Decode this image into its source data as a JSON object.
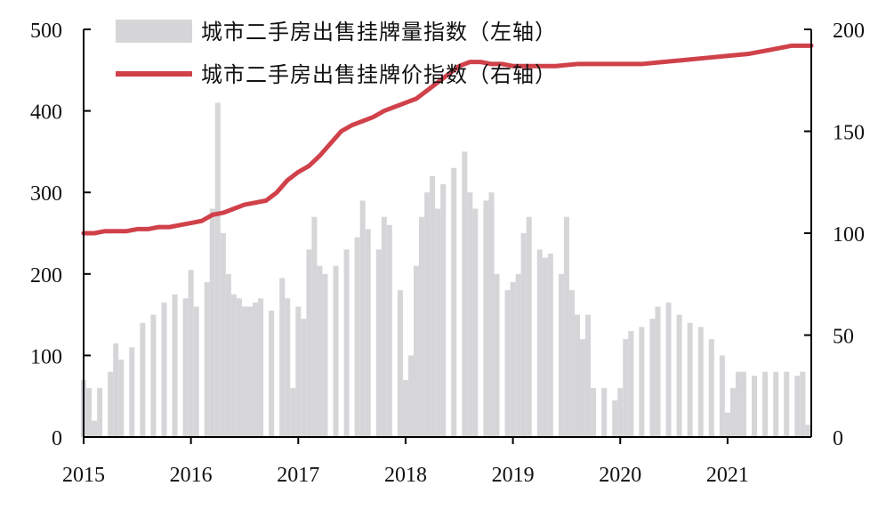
{
  "chart_data": {
    "type": "bar+line",
    "title": "",
    "x_ticks": [
      "2015",
      "2016",
      "2017",
      "2018",
      "2019",
      "2020",
      "2021"
    ],
    "x_range": [
      2015.0,
      2021.78
    ],
    "left_axis": {
      "ylim": [
        0,
        500
      ],
      "ticks": [
        "0",
        "100",
        "200",
        "300",
        "400",
        "500"
      ]
    },
    "right_axis": {
      "ylim": [
        0,
        200
      ],
      "ticks": [
        "0",
        "50",
        "100",
        "150",
        "200"
      ]
    },
    "legend_position": "top-left",
    "bar_color": "#d6d5d8",
    "line_color": "#d0414a",
    "series": [
      {
        "name": "城市二手房出售挂牌量指数（左轴）",
        "type": "bar",
        "axis": "left",
        "x": [
          2015.0,
          2015.05,
          2015.1,
          2015.15,
          2015.25,
          2015.3,
          2015.35,
          2015.45,
          2015.55,
          2015.65,
          2015.75,
          2015.85,
          2015.95,
          2016.0,
          2016.05,
          2016.15,
          2016.2,
          2016.25,
          2016.3,
          2016.35,
          2016.4,
          2016.45,
          2016.5,
          2016.55,
          2016.6,
          2016.65,
          2016.75,
          2016.85,
          2016.9,
          2016.95,
          2017.0,
          2017.05,
          2017.1,
          2017.15,
          2017.2,
          2017.25,
          2017.35,
          2017.45,
          2017.55,
          2017.6,
          2017.65,
          2017.75,
          2017.8,
          2017.85,
          2017.95,
          2018.0,
          2018.05,
          2018.1,
          2018.15,
          2018.2,
          2018.25,
          2018.3,
          2018.35,
          2018.45,
          2018.55,
          2018.6,
          2018.65,
          2018.75,
          2018.8,
          2018.85,
          2018.95,
          2019.0,
          2019.05,
          2019.1,
          2019.15,
          2019.25,
          2019.3,
          2019.35,
          2019.45,
          2019.5,
          2019.55,
          2019.6,
          2019.65,
          2019.7,
          2019.75,
          2019.85,
          2019.95,
          2020.0,
          2020.05,
          2020.1,
          2020.2,
          2020.3,
          2020.35,
          2020.45,
          2020.55,
          2020.65,
          2020.75,
          2020.85,
          2020.95,
          2021.0,
          2021.05,
          2021.1,
          2021.15,
          2021.25,
          2021.35,
          2021.45,
          2021.55,
          2021.65,
          2021.7,
          2021.75
        ],
        "values": [
          70,
          60,
          20,
          60,
          80,
          115,
          95,
          110,
          140,
          150,
          165,
          175,
          170,
          205,
          160,
          190,
          280,
          410,
          250,
          200,
          175,
          170,
          160,
          160,
          165,
          170,
          155,
          195,
          170,
          60,
          160,
          145,
          230,
          270,
          210,
          200,
          210,
          230,
          245,
          290,
          255,
          230,
          270,
          260,
          180,
          70,
          100,
          210,
          270,
          300,
          320,
          280,
          310,
          330,
          350,
          300,
          280,
          290,
          300,
          200,
          180,
          190,
          200,
          250,
          270,
          230,
          220,
          225,
          200,
          270,
          180,
          150,
          120,
          150,
          60,
          60,
          45,
          60,
          120,
          130,
          135,
          145,
          160,
          165,
          150,
          140,
          135,
          120,
          100,
          30,
          60,
          80,
          80,
          75,
          80,
          80,
          80,
          75,
          80,
          15
        ]
      },
      {
        "name": "城市二手房出售挂牌价指数（右轴）",
        "type": "line",
        "axis": "right",
        "x": [
          2015.0,
          2015.1,
          2015.2,
          2015.3,
          2015.4,
          2015.5,
          2015.6,
          2015.7,
          2015.8,
          2015.9,
          2016.0,
          2016.1,
          2016.2,
          2016.3,
          2016.4,
          2016.5,
          2016.6,
          2016.7,
          2016.8,
          2016.9,
          2017.0,
          2017.1,
          2017.2,
          2017.3,
          2017.4,
          2017.5,
          2017.6,
          2017.7,
          2017.8,
          2017.9,
          2018.0,
          2018.1,
          2018.2,
          2018.3,
          2018.4,
          2018.5,
          2018.6,
          2018.7,
          2018.8,
          2018.9,
          2019.0,
          2019.2,
          2019.4,
          2019.6,
          2019.8,
          2020.0,
          2020.2,
          2020.4,
          2020.6,
          2020.8,
          2021.0,
          2021.2,
          2021.4,
          2021.6,
          2021.78
        ],
        "values": [
          100,
          100,
          101,
          101,
          101,
          102,
          102,
          103,
          103,
          104,
          105,
          106,
          109,
          110,
          112,
          114,
          115,
          116,
          120,
          126,
          130,
          133,
          138,
          144,
          150,
          153,
          155,
          157,
          160,
          162,
          164,
          166,
          170,
          174,
          178,
          182,
          184,
          184,
          183,
          183,
          182,
          182,
          182,
          183,
          183,
          183,
          183,
          184,
          185,
          186,
          187,
          188,
          190,
          192,
          192
        ]
      }
    ]
  }
}
